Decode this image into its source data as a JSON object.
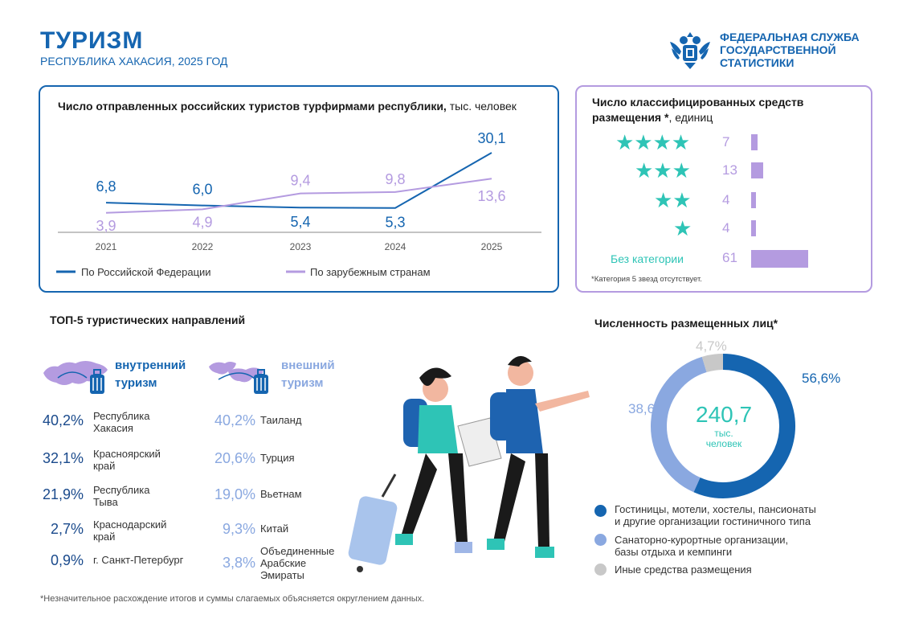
{
  "header": {
    "title": "ТУРИЗМ",
    "subtitle": "РЕСПУБЛИКА ХАКАСИЯ, 2025 ГОД",
    "logo_line1": "ФЕДЕРАЛЬНАЯ СЛУЖБА",
    "logo_line2": "ГОСУДАРСТВЕННОЙ",
    "logo_line3": "СТАТИСТИКИ"
  },
  "colors": {
    "dark_blue": "#1565b0",
    "purple": "#b49be0",
    "teal": "#2ec4b6",
    "light_blue": "#8aa8e0",
    "gray": "#c8c8c8"
  },
  "tourists_panel": {
    "title_bold": "Число отправленных российских туристов турфирмами республики,",
    "title_unit": " тыс. человек",
    "legend_domestic": "По Российской Федерации",
    "legend_foreign": "По зарубежным странам"
  },
  "accommodation_panel": {
    "title_bold_1": "Число классифицированных средств",
    "title_bold_2": "размещения *",
    "title_unit": ", единиц",
    "no_category_label": "Без категории",
    "note": "*Категория 5 звезд отсутствует.",
    "star_icon": "star-icon"
  },
  "top5": {
    "title": "ТОП-5 туристических направлений",
    "domestic_label_1": "внутренний",
    "domestic_label_2": "туризм",
    "foreign_label_1": "внешний",
    "foreign_label_2": "туризм",
    "domestic": [
      {
        "pct": "40,2%",
        "l1": "Республика",
        "l2": "Хакасия",
        "l3": ""
      },
      {
        "pct": "32,1%",
        "l1": "Красноярский",
        "l2": "край",
        "l3": ""
      },
      {
        "pct": "21,9%",
        "l1": "Республика",
        "l2": "Тыва",
        "l3": ""
      },
      {
        "pct": "2,7%",
        "l1": "Краснодарский",
        "l2": "край",
        "l3": ""
      },
      {
        "pct": "0,9%",
        "l1": "г. Санкт-Петербург",
        "l2": "",
        "l3": ""
      }
    ],
    "foreign": [
      {
        "pct": "40,2%",
        "l1": "Таиланд",
        "l2": "",
        "l3": ""
      },
      {
        "pct": "20,6%",
        "l1": "Турция",
        "l2": "",
        "l3": ""
      },
      {
        "pct": "19,0%",
        "l1": "Вьетнам",
        "l2": "",
        "l3": ""
      },
      {
        "pct": "9,3%",
        "l1": "Китай",
        "l2": "",
        "l3": ""
      },
      {
        "pct": "3,8%",
        "l1": "Объединенные",
        "l2": "Арабские",
        "l3": "Эмираты"
      }
    ]
  },
  "placed_panel": {
    "title": "Численность размещенных лиц*",
    "total": "240,7",
    "unit_1": "тыс.",
    "unit_2": "человек",
    "legend": [
      {
        "l1": "Гостиницы, мотели, хостелы, пансионаты",
        "l2": "и другие организации гостиничного типа"
      },
      {
        "l1": "Санаторно-курортные организации,",
        "l2": "базы отдыха и кемпинги"
      },
      {
        "l1": "Иные средства размещения",
        "l2": ""
      }
    ]
  },
  "footnote": "*Незначительное расхождение итогов и суммы слагаемых объясняется округлением данных.",
  "chart_data": [
    {
      "type": "line",
      "x": [
        "2021",
        "2022",
        "2023",
        "2024",
        "2025"
      ],
      "series": [
        {
          "name": "По Российской Федерации",
          "values": [
            6.8,
            6.0,
            5.4,
            5.3,
            30.1
          ],
          "labels": [
            "6,8",
            "6,0",
            "5,4",
            "5,3",
            "30,1"
          ],
          "color": "#1565b0"
        },
        {
          "name": "По зарубежным странам",
          "values": [
            3.9,
            4.9,
            9.4,
            9.8,
            13.6
          ],
          "labels": [
            "3,9",
            "4,9",
            "9,4",
            "9,8",
            "13,6"
          ],
          "color": "#b49be0"
        }
      ]
    },
    {
      "type": "bar",
      "categories": [
        "4 звезды",
        "3 звезды",
        "2 звезды",
        "1 звезда",
        "Без категории"
      ],
      "stars": [
        4,
        3,
        2,
        1,
        0
      ],
      "values": [
        7,
        13,
        4,
        4,
        61
      ],
      "labels": [
        "7",
        "13",
        "4",
        "4",
        "61"
      ]
    },
    {
      "type": "pie",
      "categories": [
        "Гостиницы, мотели, хостелы, пансионаты и другие организации гостиничного типа",
        "Санаторно-курортные организации, базы отдыха и кемпинги",
        "Иные средства размещения"
      ],
      "values": [
        56.6,
        38.6,
        4.7
      ],
      "labels": [
        "56,6%",
        "38,6%",
        "4,7%"
      ],
      "colors": [
        "#1565b0",
        "#8aa8e0",
        "#c8c8c8"
      ]
    }
  ]
}
